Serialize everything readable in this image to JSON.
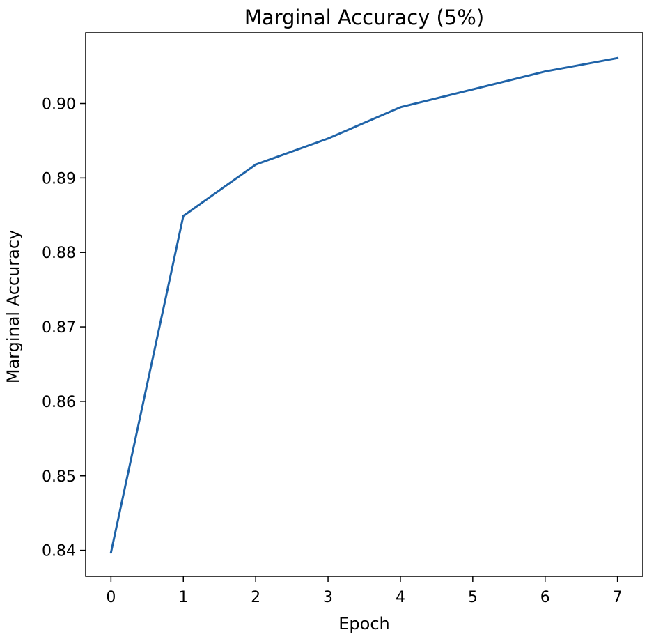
{
  "chart_data": {
    "type": "line",
    "title": "Marginal Accuracy (5%)",
    "xlabel": "Epoch",
    "ylabel": "Marginal Accuracy",
    "x": [
      0,
      1,
      2,
      3,
      4,
      5,
      6,
      7
    ],
    "series": [
      {
        "values": [
          0.8397,
          0.8849,
          0.8918,
          0.8953,
          0.8995,
          0.9019,
          0.9043,
          0.9061
        ]
      }
    ],
    "xlim": [
      -0.35,
      7.35
    ],
    "ylim": [
      0.8365,
      0.9095
    ],
    "xticks": [
      "0",
      "1",
      "2",
      "3",
      "4",
      "5",
      "6",
      "7"
    ],
    "yticks": [
      "0.84",
      "0.85",
      "0.86",
      "0.87",
      "0.88",
      "0.89",
      "0.90"
    ],
    "grid": false,
    "colors": {
      "line": "#1f63a8",
      "axes": "#000000"
    }
  }
}
